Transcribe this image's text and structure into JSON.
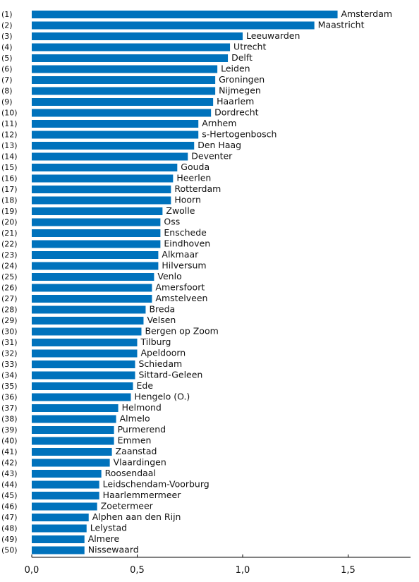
{
  "chart_data": {
    "type": "bar",
    "orientation": "horizontal",
    "title": "",
    "xlabel": "",
    "ylabel": "",
    "xlim": [
      0,
      1.8
    ],
    "ticks": [
      0,
      0.5,
      1.0,
      1.5
    ],
    "tick_labels": [
      "0,0",
      "0,5",
      "1,0",
      "1,5"
    ],
    "grid": false,
    "bar_color": "#0072bc",
    "items": [
      {
        "rank": "(1)",
        "name": "Amsterdam",
        "value": 1.45
      },
      {
        "rank": "(2)",
        "name": "Maastricht",
        "value": 1.34
      },
      {
        "rank": "(3)",
        "name": "Leeuwarden",
        "value": 1.0
      },
      {
        "rank": "(4)",
        "name": "Utrecht",
        "value": 0.94
      },
      {
        "rank": "(5)",
        "name": "Delft",
        "value": 0.93
      },
      {
        "rank": "(6)",
        "name": "Leiden",
        "value": 0.88
      },
      {
        "rank": "(7)",
        "name": "Groningen",
        "value": 0.87
      },
      {
        "rank": "(8)",
        "name": "Nijmegen",
        "value": 0.87
      },
      {
        "rank": "(9)",
        "name": "Haarlem",
        "value": 0.86
      },
      {
        "rank": "(10)",
        "name": "Dordrecht",
        "value": 0.85
      },
      {
        "rank": "(11)",
        "name": "Arnhem",
        "value": 0.79
      },
      {
        "rank": "(12)",
        "name": "s-Hertogenbosch",
        "value": 0.79
      },
      {
        "rank": "(13)",
        "name": "Den Haag",
        "value": 0.77
      },
      {
        "rank": "(14)",
        "name": "Deventer",
        "value": 0.74
      },
      {
        "rank": "(15)",
        "name": "Gouda",
        "value": 0.69
      },
      {
        "rank": "(16)",
        "name": "Heerlen",
        "value": 0.67
      },
      {
        "rank": "(17)",
        "name": "Rotterdam",
        "value": 0.66
      },
      {
        "rank": "(18)",
        "name": "Hoorn",
        "value": 0.66
      },
      {
        "rank": "(19)",
        "name": "Zwolle",
        "value": 0.62
      },
      {
        "rank": "(20)",
        "name": "Oss",
        "value": 0.61
      },
      {
        "rank": "(21)",
        "name": "Enschede",
        "value": 0.61
      },
      {
        "rank": "(22)",
        "name": "Eindhoven",
        "value": 0.61
      },
      {
        "rank": "(23)",
        "name": "Alkmaar",
        "value": 0.6
      },
      {
        "rank": "(24)",
        "name": "Hilversum",
        "value": 0.6
      },
      {
        "rank": "(25)",
        "name": "Venlo",
        "value": 0.58
      },
      {
        "rank": "(26)",
        "name": "Amersfoort",
        "value": 0.57
      },
      {
        "rank": "(27)",
        "name": "Amstelveen",
        "value": 0.57
      },
      {
        "rank": "(28)",
        "name": "Breda",
        "value": 0.54
      },
      {
        "rank": "(29)",
        "name": "Velsen",
        "value": 0.53
      },
      {
        "rank": "(30)",
        "name": "Bergen op Zoom",
        "value": 0.52
      },
      {
        "rank": "(31)",
        "name": "Tilburg",
        "value": 0.5
      },
      {
        "rank": "(32)",
        "name": "Apeldoorn",
        "value": 0.5
      },
      {
        "rank": "(33)",
        "name": "Schiedam",
        "value": 0.49
      },
      {
        "rank": "(34)",
        "name": "Sittard-Geleen",
        "value": 0.49
      },
      {
        "rank": "(35)",
        "name": "Ede",
        "value": 0.48
      },
      {
        "rank": "(36)",
        "name": "Hengelo (O.)",
        "value": 0.47
      },
      {
        "rank": "(37)",
        "name": "Helmond",
        "value": 0.41
      },
      {
        "rank": "(38)",
        "name": "Almelo",
        "value": 0.4
      },
      {
        "rank": "(39)",
        "name": "Purmerend",
        "value": 0.39
      },
      {
        "rank": "(40)",
        "name": "Emmen",
        "value": 0.39
      },
      {
        "rank": "(41)",
        "name": "Zaanstad",
        "value": 0.38
      },
      {
        "rank": "(42)",
        "name": "Vlaardingen",
        "value": 0.37
      },
      {
        "rank": "(43)",
        "name": "Roosendaal",
        "value": 0.33
      },
      {
        "rank": "(44)",
        "name": "Leidschendam-Voorburg",
        "value": 0.32
      },
      {
        "rank": "(45)",
        "name": "Haarlemmermeer",
        "value": 0.32
      },
      {
        "rank": "(46)",
        "name": "Zoetermeer",
        "value": 0.31
      },
      {
        "rank": "(47)",
        "name": "Alphen aan den Rijn",
        "value": 0.27
      },
      {
        "rank": "(48)",
        "name": "Lelystad",
        "value": 0.26
      },
      {
        "rank": "(49)",
        "name": "Almere",
        "value": 0.25
      },
      {
        "rank": "(50)",
        "name": "Nissewaard",
        "value": 0.25
      }
    ]
  }
}
